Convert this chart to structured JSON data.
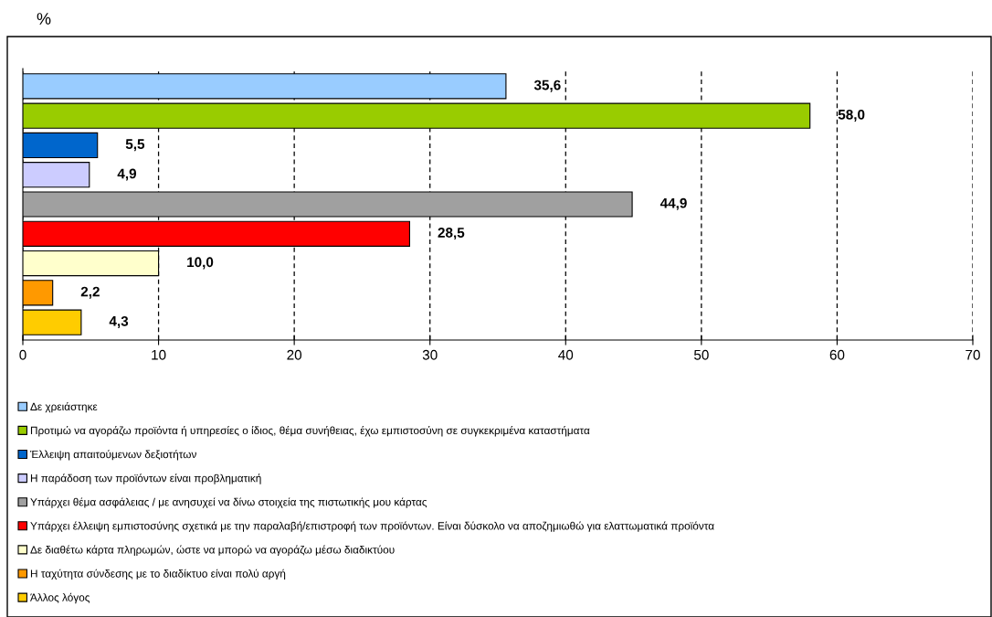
{
  "chart_data": {
    "type": "bar",
    "orientation": "horizontal",
    "title": "%",
    "categories": [
      null,
      null,
      null,
      null,
      null,
      null,
      null,
      null,
      null
    ],
    "series": [
      {
        "name": "Δε χρειάστηκε",
        "color": "#99ccff",
        "values": [
          35.6,
          null,
          null,
          null,
          null,
          null,
          null,
          null,
          null
        ],
        "value_labels": [
          "35,6",
          null,
          null,
          null,
          null,
          null,
          null,
          null,
          null
        ]
      },
      {
        "name": "Προτιμώ να αγοράζω προϊόντα ή υπηρεσίες ο ίδιος, θέμα συνήθειας, έχω εμπιστοσύνη σε συγκεκριμένα καταστήματα",
        "color": "#99cc00",
        "values": [
          null,
          58.0,
          null,
          null,
          null,
          null,
          null,
          null,
          null
        ],
        "value_labels": [
          null,
          "58,0",
          null,
          null,
          null,
          null,
          null,
          null,
          null
        ]
      },
      {
        "name": "Έλλειψη απαιτούμενων δεξιοτήτων",
        "color": "#0066cc",
        "values": [
          null,
          null,
          5.5,
          null,
          null,
          null,
          null,
          null,
          null
        ],
        "value_labels": [
          null,
          null,
          "5,5",
          null,
          null,
          null,
          null,
          null,
          null
        ]
      },
      {
        "name": "Η παράδοση των προϊόντων είναι προβληματική",
        "color": "#ccccff",
        "values": [
          null,
          null,
          null,
          4.9,
          null,
          null,
          null,
          null,
          null
        ],
        "value_labels": [
          null,
          null,
          null,
          "4,9",
          null,
          null,
          null,
          null,
          null
        ]
      },
      {
        "name": "Υπάρχει θέμα ασφάλειας / με ανησυχεί να δίνω στοιχεία της πιστωτικής μου κάρτας",
        "color": "#a0a0a0",
        "values": [
          null,
          null,
          null,
          null,
          44.9,
          null,
          null,
          null,
          null
        ],
        "value_labels": [
          null,
          null,
          null,
          null,
          "44,9",
          null,
          null,
          null,
          null
        ]
      },
      {
        "name": "Υπάρχει έλλειψη εμπιστοσύνης σχετικά με την παραλαβή/επιστροφή των προϊόντων. Είναι δύσκολο να αποζημιωθώ για ελαττωματικά προϊόντα",
        "color": "#ff0000",
        "values": [
          null,
          null,
          null,
          null,
          null,
          28.5,
          null,
          null,
          null
        ],
        "value_labels": [
          null,
          null,
          null,
          null,
          null,
          "28,5",
          null,
          null,
          null
        ]
      },
      {
        "name": "Δε διαθέτω κάρτα πληρωμών, ώστε να μπορώ να αγοράζω μέσω διαδικτύου",
        "color": "#ffffcc",
        "values": [
          null,
          null,
          null,
          null,
          null,
          null,
          10.0,
          null,
          null
        ],
        "value_labels": [
          null,
          null,
          null,
          null,
          null,
          null,
          "10,0",
          null,
          null
        ]
      },
      {
        "name": "Η ταχύτητα σύνδεσης με το διαδίκτυο είναι πολύ αργή",
        "color": "#ff9900",
        "values": [
          null,
          null,
          null,
          null,
          null,
          null,
          null,
          2.2,
          null
        ],
        "value_labels": [
          null,
          null,
          null,
          null,
          null,
          null,
          null,
          "2,2",
          null
        ]
      },
      {
        "name": "Άλλος λόγος",
        "color": "#ffcc00",
        "values": [
          null,
          null,
          null,
          null,
          null,
          null,
          null,
          null,
          4.3
        ],
        "value_labels": [
          null,
          null,
          null,
          null,
          null,
          null,
          null,
          null,
          "4,3"
        ]
      }
    ],
    "xlim": [
      0,
      70
    ],
    "xticks": [
      0,
      10,
      20,
      30,
      40,
      50,
      60,
      70
    ],
    "grid": "x",
    "legend": "bottom",
    "tick_labels": "x"
  }
}
